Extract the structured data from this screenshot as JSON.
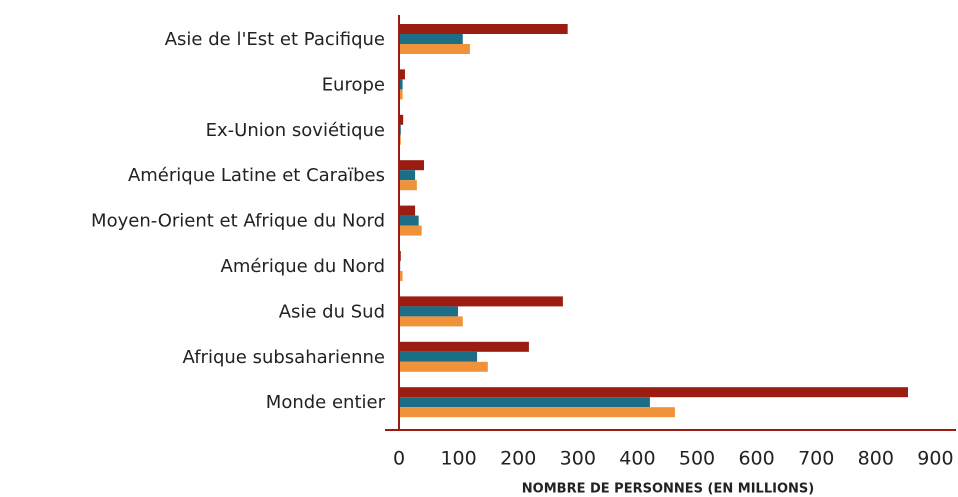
{
  "chart_data": {
    "type": "bar",
    "orientation": "horizontal",
    "categories": [
      "Asie de l'Est et Pacifique",
      "Europe",
      "Ex-Union soviétique",
      "Amérique Latine et Caraïbes",
      "Moyen-Orient et Afrique du Nord",
      "Amérique du Nord",
      "Asie du Sud",
      "Afrique subsaharienne",
      "Monde entier"
    ],
    "series": [
      {
        "color": "#9b1c10",
        "values": [
          283,
          10,
          7,
          42,
          27,
          3,
          275,
          218,
          854
        ]
      },
      {
        "color": "#1c6e87",
        "values": [
          107,
          6,
          3,
          27,
          33,
          2,
          99,
          131,
          421
        ]
      },
      {
        "color": "#f0923a",
        "values": [
          119,
          6,
          3,
          30,
          38,
          6,
          107,
          149,
          463
        ]
      }
    ],
    "xlim": [
      0,
      900
    ],
    "xticks": [
      0,
      100,
      200,
      300,
      400,
      500,
      600,
      700,
      800,
      900
    ],
    "xlabel": "NOMBRE DE PERSONNES (EN MILLIONS)",
    "grid": false
  }
}
